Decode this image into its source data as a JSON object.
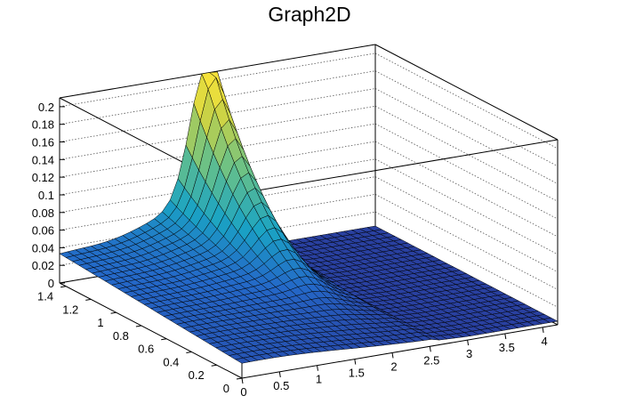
{
  "chart_data": {
    "type": "surface",
    "title": "Graph2D",
    "x_axis": {
      "range": [
        0,
        4.2
      ],
      "ticks": [
        "0",
        "0.5",
        "1",
        "1.5",
        "2",
        "2.5",
        "3",
        "3.5",
        "4"
      ],
      "tick_values": [
        0,
        0.5,
        1,
        1.5,
        2,
        2.5,
        3,
        3.5,
        4
      ]
    },
    "y_axis": {
      "range": [
        0,
        1.45
      ],
      "ticks": [
        "0",
        "0.2",
        "0.4",
        "0.6",
        "0.8",
        "1",
        "1.2",
        "1.4"
      ],
      "tick_values": [
        0,
        0.2,
        0.4,
        0.6,
        0.8,
        1,
        1.2,
        1.4
      ]
    },
    "z_axis": {
      "range": [
        0,
        0.21
      ],
      "ticks": [
        "0",
        "0.02",
        "0.04",
        "0.06",
        "0.08",
        "0.1",
        "0.12",
        "0.14",
        "0.16",
        "0.18",
        "0.2"
      ],
      "tick_values": [
        0,
        0.02,
        0.04,
        0.06,
        0.08,
        0.1,
        0.12,
        0.14,
        0.16,
        0.18,
        0.2
      ]
    },
    "surface": {
      "peak": {
        "x": 2.0,
        "y": 1.4,
        "z": 0.2
      },
      "floor_level": 0.02,
      "z_grid_lines": "dotted"
    },
    "colors": {
      "low": "#2a3a9a",
      "mid": "#1aa3c4",
      "mid_high": "#66c08a",
      "high": "#f5e23a",
      "mesh": "#000000",
      "background": "#ffffff"
    }
  }
}
